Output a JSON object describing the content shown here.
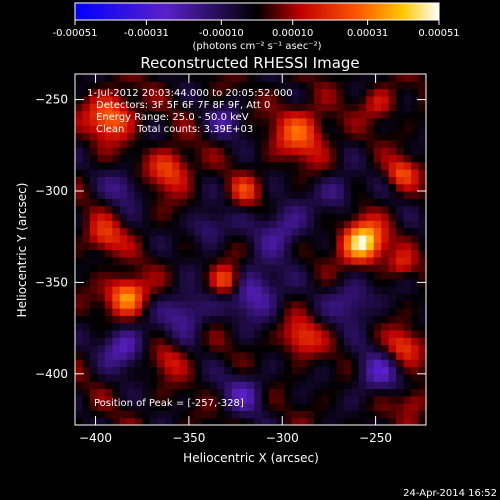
{
  "chart_data": {
    "type": "heatmap",
    "title": "Reconstructed RHESSI Image",
    "xlabel": "Heliocentric X (arcsec)",
    "ylabel": "Heliocentric Y (arcsec)",
    "xlim": [
      -411,
      -223
    ],
    "ylim": [
      -428,
      -236
    ],
    "xticks": [
      -400,
      -350,
      -300,
      -250
    ],
    "yticks": [
      -400,
      -350,
      -300,
      -250
    ],
    "colorbar": {
      "min": -0.00051,
      "max": 0.00051,
      "ticks": [
        -0.00051,
        -0.00031,
        -0.0001,
        0.0001,
        0.00031,
        0.00051
      ],
      "tick_labels": [
        "-0.00051",
        "-0.00031",
        "-0.00010",
        "0.00010",
        "0.00031",
        "0.00051"
      ],
      "unit_label": "(photons cm⁻² s⁻¹ asec⁻²)"
    },
    "annotations": {
      "time_range": "1-Jul-2012 20:03:44.000 to 20:05:52.000",
      "detectors": "Detectors: 3F 5F 6F 7F 8F 9F, Att 0",
      "energy_range": "Energy Range: 25.0 - 50.0 keV",
      "method_counts": "Clean    Total counts: 3.39E+03",
      "peak_position": "Position of Peak = [-257,-328]"
    },
    "peak": {
      "x": -257,
      "y": -328
    },
    "image_sources": [
      {
        "x": -257,
        "y": -328,
        "r": 11,
        "v": 1.0
      },
      {
        "x": -383,
        "y": -357,
        "r": 10,
        "v": 0.75
      },
      {
        "x": -330,
        "y": -349,
        "r": 8,
        "v": 0.6
      },
      {
        "x": -392,
        "y": -259,
        "r": 12,
        "v": 0.6
      },
      {
        "x": -290,
        "y": -268,
        "r": 14,
        "v": 0.5
      },
      {
        "x": -360,
        "y": -288,
        "r": 11,
        "v": 0.5
      },
      {
        "x": -236,
        "y": -290,
        "r": 8,
        "v": 0.45
      },
      {
        "x": -395,
        "y": -325,
        "r": 10,
        "v": 0.4
      },
      {
        "x": -290,
        "y": -380,
        "r": 10,
        "v": 0.42
      },
      {
        "x": -235,
        "y": -385,
        "r": 9,
        "v": 0.42
      },
      {
        "x": -360,
        "y": -392,
        "r": 9,
        "v": 0.3
      },
      {
        "x": -230,
        "y": -415,
        "r": 8,
        "v": 0.35
      },
      {
        "x": -320,
        "y": -300,
        "r": 8,
        "v": 0.35
      },
      {
        "x": -236,
        "y": -340,
        "r": 7,
        "v": 0.3
      },
      {
        "x": -248,
        "y": -252,
        "r": 9,
        "v": 0.3
      },
      {
        "x": -352,
        "y": -366,
        "r": -12,
        "v": -0.45
      },
      {
        "x": -315,
        "y": -355,
        "r": -14,
        "v": -0.5
      },
      {
        "x": -385,
        "y": -385,
        "r": -12,
        "v": -0.45
      },
      {
        "x": -300,
        "y": -320,
        "r": -14,
        "v": -0.4
      },
      {
        "x": -262,
        "y": -360,
        "r": -12,
        "v": -0.4
      },
      {
        "x": -340,
        "y": -320,
        "r": -10,
        "v": -0.35
      },
      {
        "x": -270,
        "y": -300,
        "r": -10,
        "v": -0.35
      },
      {
        "x": -250,
        "y": -400,
        "r": -12,
        "v": -0.4
      },
      {
        "x": -320,
        "y": -410,
        "r": -12,
        "v": -0.35
      },
      {
        "x": -330,
        "y": -262,
        "r": -10,
        "v": -0.3
      },
      {
        "x": -385,
        "y": -298,
        "r": -10,
        "v": -0.3
      }
    ]
  },
  "footer": {
    "timestamp": "24-Apr-2014 16:52"
  }
}
